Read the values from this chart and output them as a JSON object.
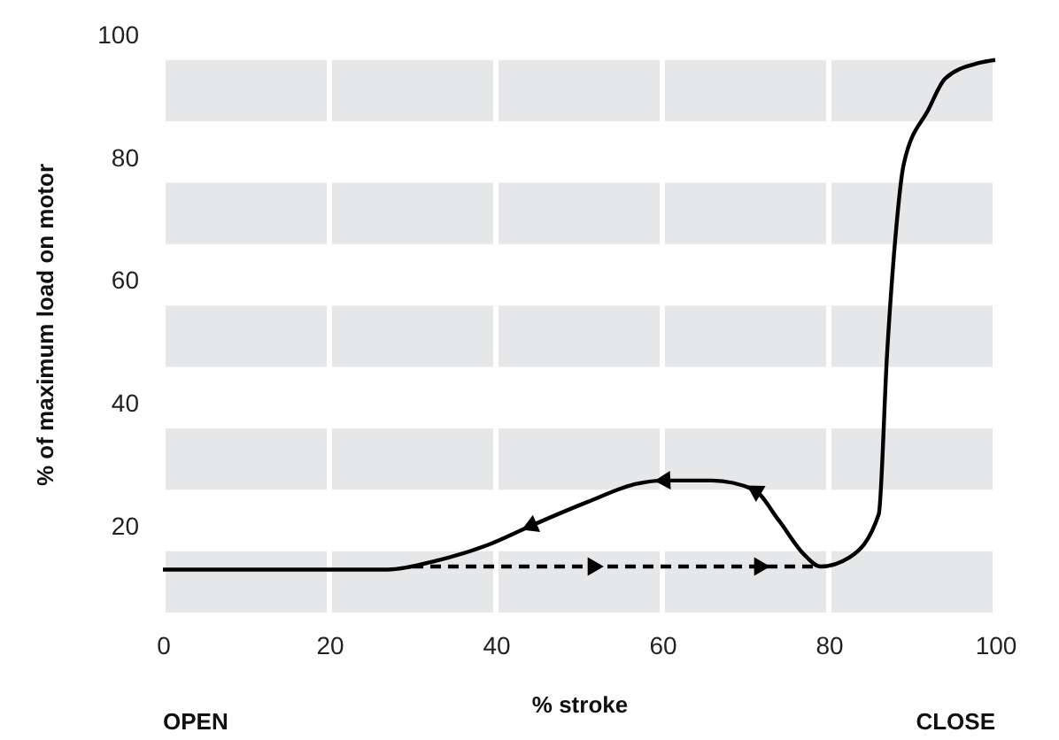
{
  "chart_data": {
    "type": "line",
    "xlabel": "% stroke",
    "ylabel": "% of maximum load on motor",
    "series": [
      {
        "color": "#000000",
        "line_style": "solid",
        "x": [
          0,
          10,
          20,
          25,
          27,
          33,
          39,
          44,
          51,
          57,
          60,
          66,
          71,
          74,
          77,
          79,
          82.5,
          86,
          87,
          88,
          89,
          92,
          94,
          98,
          100
        ],
        "values": [
          13,
          13,
          13,
          13,
          13,
          14.5,
          17,
          20,
          24,
          27,
          27.5,
          27.5,
          26,
          21,
          15.5,
          13.5,
          15,
          22,
          48,
          67,
          79,
          88,
          93,
          95.5,
          96
        ]
      },
      {
        "color": "#000000",
        "line_style": "dashed",
        "x": [
          30,
          52,
          72,
          79
        ],
        "values": [
          13.5,
          13.5,
          13.5,
          13.5
        ]
      }
    ],
    "xlim": [
      0,
      100
    ],
    "xticks": [
      0,
      20,
      40,
      60,
      80,
      100
    ],
    "ylim": [
      6,
      100
    ],
    "yticks": [
      20,
      40,
      60,
      80,
      100
    ],
    "bands": [
      {
        "axis": "y",
        "from": 6,
        "to": 16,
        "color": "#e6e7e8"
      },
      {
        "axis": "y",
        "from": 26,
        "to": 36,
        "color": "#e6e7e8"
      },
      {
        "axis": "y",
        "from": 46,
        "to": 56,
        "color": "#e6e7e8"
      },
      {
        "axis": "y",
        "from": 66,
        "to": 76,
        "color": "#e6e7e8"
      },
      {
        "axis": "y",
        "from": 86,
        "to": 96,
        "color": "#e6e7e8"
      }
    ],
    "grid": "x",
    "annotations": [
      "OPEN",
      "CLOSE"
    ]
  }
}
